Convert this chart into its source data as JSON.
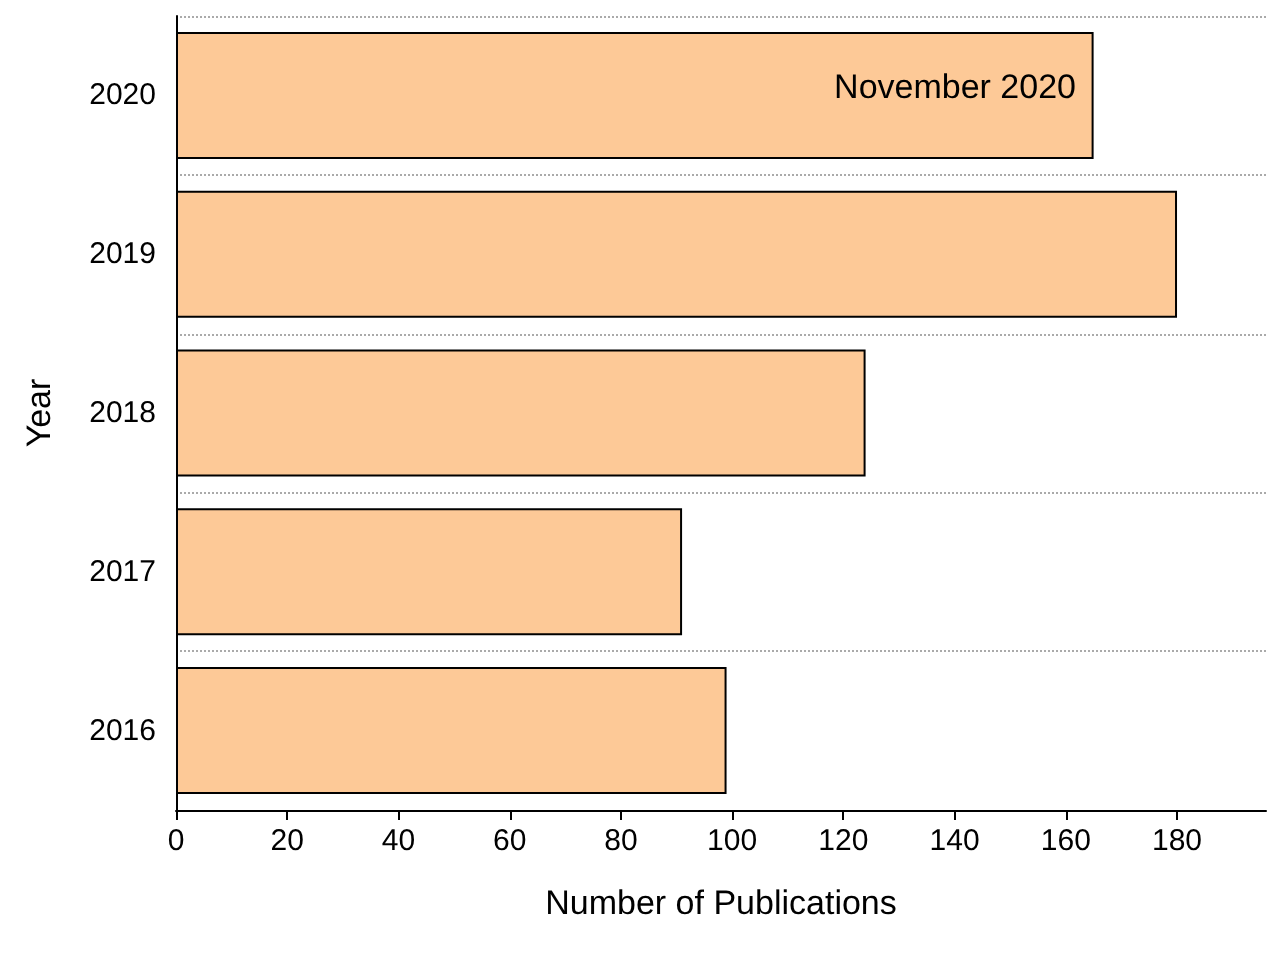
{
  "chart_data": {
    "type": "bar",
    "orientation": "horizontal",
    "ylabel": "Year",
    "xlabel": "Number of Publications",
    "categories": [
      "2020",
      "2019",
      "2018",
      "2017",
      "2016"
    ],
    "values": [
      165,
      180,
      124,
      91,
      99
    ],
    "color": "#fdc997",
    "xlim": [
      0,
      196
    ],
    "xticks": [
      0,
      20,
      40,
      60,
      80,
      100,
      120,
      140,
      160,
      180
    ],
    "grid": "y",
    "annotations": [
      "November 2020"
    ]
  }
}
